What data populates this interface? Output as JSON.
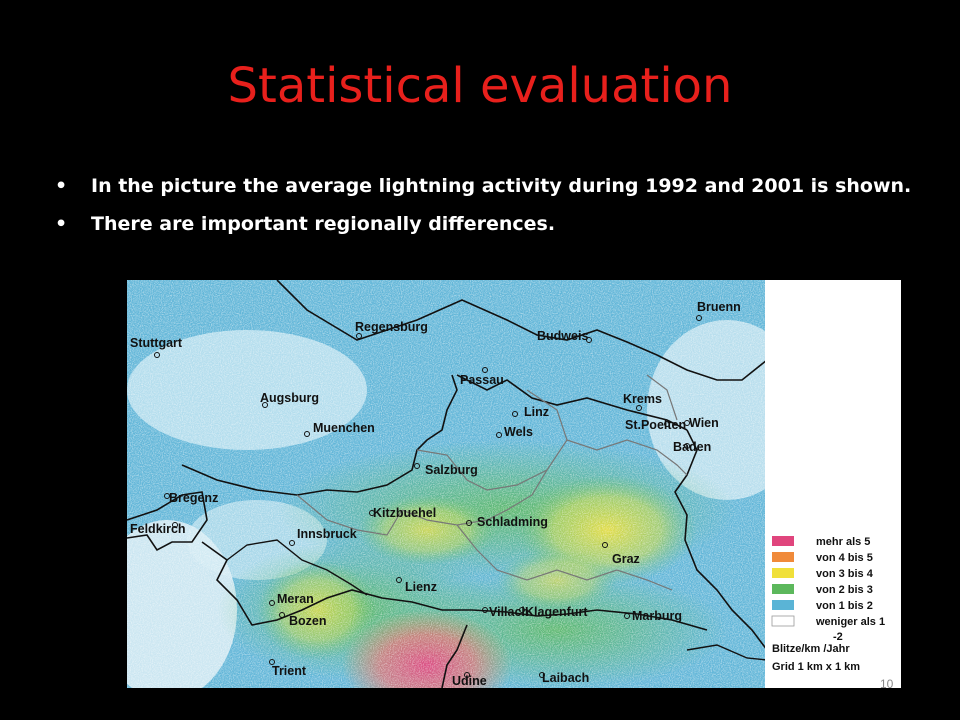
{
  "slide": {
    "title": "Statistical evaluation",
    "bullets": [
      "In the picture the average lightning activity during 1992 and 2001 is shown.",
      "There are important regionally differences."
    ],
    "page_number": "10"
  },
  "map": {
    "cities": [
      "Bruenn",
      "Regensburg",
      "Stuttgart",
      "Budweis",
      "Passau",
      "Augsburg",
      "Krems",
      "Linz",
      "St.Poelten",
      "Wien",
      "Wels",
      "Muenchen",
      "Baden",
      "Salzburg",
      "Bregenz",
      "Feldkirch",
      "Kitzbuehel",
      "Schladming",
      "Innsbruck",
      "Graz",
      "Lienz",
      "Meran",
      "Bozen",
      "Villach",
      "Klagenfurt",
      "Marburg",
      "Trient",
      "Udine",
      "Laibach"
    ],
    "legend": {
      "items": [
        {
          "label": "mehr als 5",
          "color": "#e0457d"
        },
        {
          "label": "von 4  bis 5",
          "color": "#f08a3a"
        },
        {
          "label": "von 3  bis 4",
          "color": "#f0e03a"
        },
        {
          "label": "von 2  bis 3",
          "color": "#5cb85c"
        },
        {
          "label": "von 1  bis 2",
          "color": "#5ab4d6"
        },
        {
          "label": "weniger als 1",
          "color": "#ffffff"
        }
      ],
      "unit": "Blitze/km  /Jahr",
      "unit_exponent": "-2",
      "grid": "Grid 1 km x 1 km"
    }
  }
}
